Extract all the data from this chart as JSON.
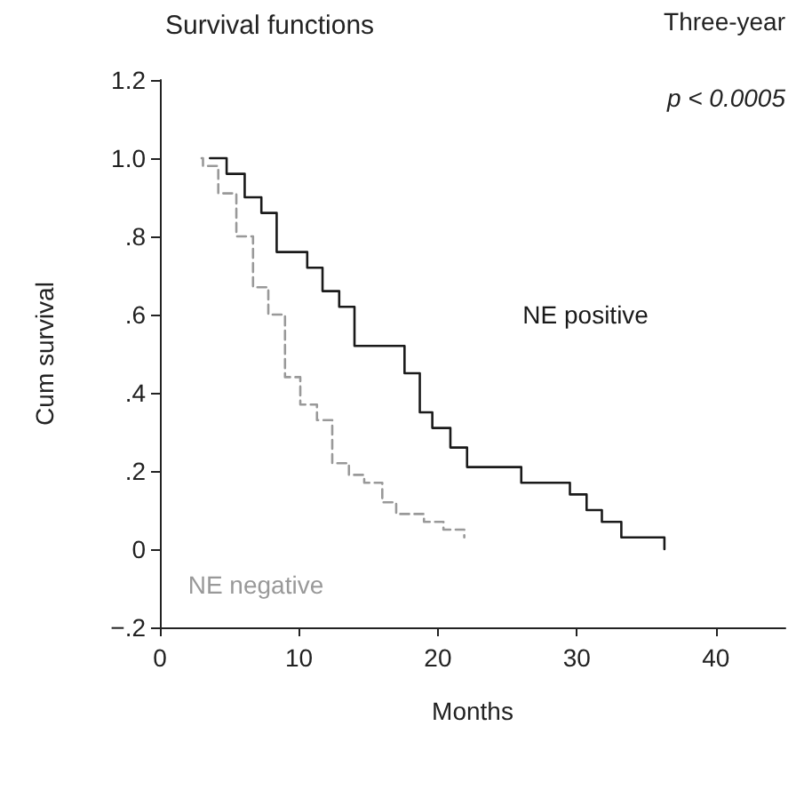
{
  "chart_data": {
    "type": "step",
    "title": "Survival functions",
    "xlabel": "Months",
    "ylabel": "Cum survival",
    "annotations": [
      "Three-year",
      "p < 0.0005"
    ],
    "xlim": [
      0,
      45
    ],
    "xticks": [
      0,
      10,
      20,
      30,
      40
    ],
    "ylim": [
      -0.2,
      1.2
    ],
    "yticks": [
      {
        "value": -0.2,
        "label": "−.2"
      },
      0,
      {
        "value": 0.2,
        "label": ".2"
      },
      {
        "value": 0.4,
        "label": ".4"
      },
      {
        "value": 0.6,
        "label": ".6"
      },
      {
        "value": 0.8,
        "label": ".8"
      },
      {
        "value": 1.0,
        "label": "1.0"
      },
      {
        "value": 1.2,
        "label": "1.2"
      }
    ],
    "grid": false,
    "legend": false,
    "marker": "none",
    "series": [
      {
        "name": "NE positive",
        "color": "#1a1a1a",
        "line_style": "solid",
        "x": [
          3.6,
          4.8,
          6.1,
          7.3,
          8.4,
          10.6,
          11.7,
          12.9,
          14.0,
          17.6,
          18.7,
          19.6,
          20.9,
          22.1,
          26.0,
          29.5,
          30.7,
          31.8,
          33.2,
          36.3
        ],
        "values": [
          1.0,
          0.96,
          0.9,
          0.86,
          0.76,
          0.72,
          0.66,
          0.62,
          0.52,
          0.45,
          0.35,
          0.31,
          0.26,
          0.21,
          0.17,
          0.14,
          0.1,
          0.07,
          0.03,
          0.0
        ]
      },
      {
        "name": "NE negative",
        "color": "#999999",
        "line_style": "dashed",
        "x": [
          3.0,
          3.1,
          4.2,
          5.5,
          6.7,
          7.8,
          9.0,
          10.1,
          11.3,
          12.4,
          13.6,
          14.7,
          16.0,
          17.0,
          19.0,
          20.4,
          21.9
        ],
        "values": [
          1.0,
          0.98,
          0.91,
          0.8,
          0.67,
          0.6,
          0.44,
          0.37,
          0.33,
          0.22,
          0.19,
          0.17,
          0.12,
          0.09,
          0.07,
          0.05,
          0.03
        ]
      }
    ]
  }
}
